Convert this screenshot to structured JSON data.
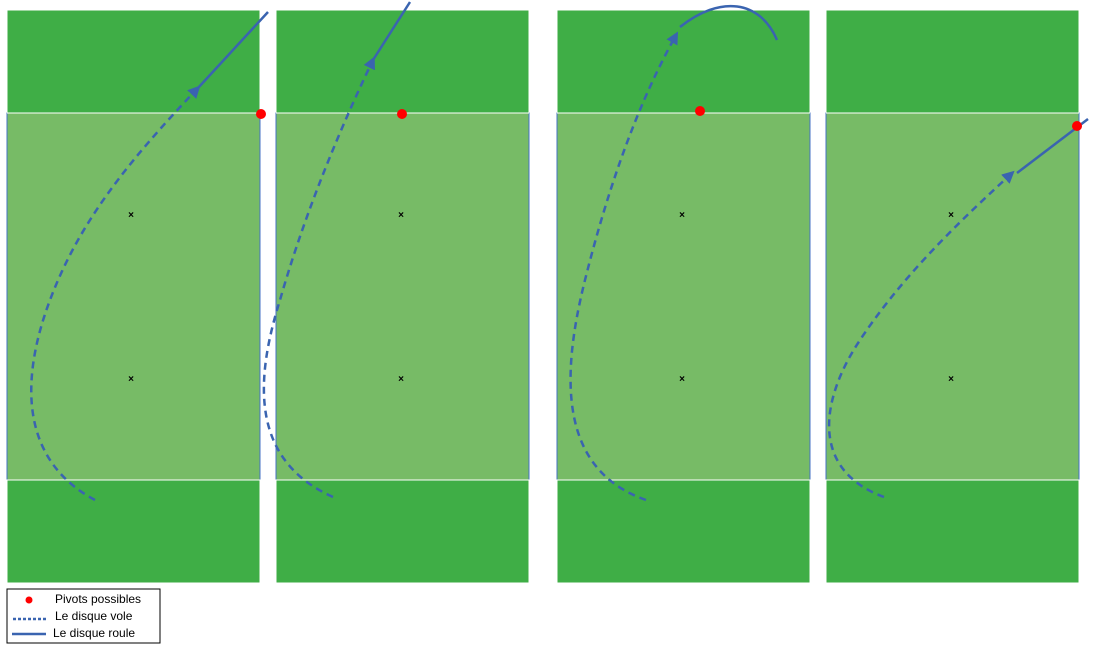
{
  "colors": {
    "endzone": "#3fae46",
    "central_zone": "#77bb66",
    "field_border": "#ffffff",
    "field_side_line": "#4472c4",
    "trajectory": "#3a64b0",
    "pivot": "#ff0000",
    "marker": "#000000"
  },
  "fields": [
    {
      "id": "field-1",
      "trajectory": "flies-then-rolls-out-right-corner",
      "pivot_location": "outside right sideline at the top end line"
    },
    {
      "id": "field-2",
      "trajectory": "flies-then-rolls-out-top",
      "pivot_location": "on top end line"
    },
    {
      "id": "field-3",
      "trajectory": "flies-and-lands-out-top-arc",
      "pivot_location": "on top end line"
    },
    {
      "id": "field-4",
      "trajectory": "flies-then-rolls-out-right-side",
      "pivot_location": "right sideline"
    }
  ],
  "legend": {
    "items": [
      {
        "symbol": "pivot-dot-icon",
        "label": "Pivots possibles"
      },
      {
        "symbol": "dotted-line-icon",
        "label": "Le disque vole"
      },
      {
        "symbol": "solid-line-icon",
        "label": "Le disque roule"
      }
    ]
  }
}
